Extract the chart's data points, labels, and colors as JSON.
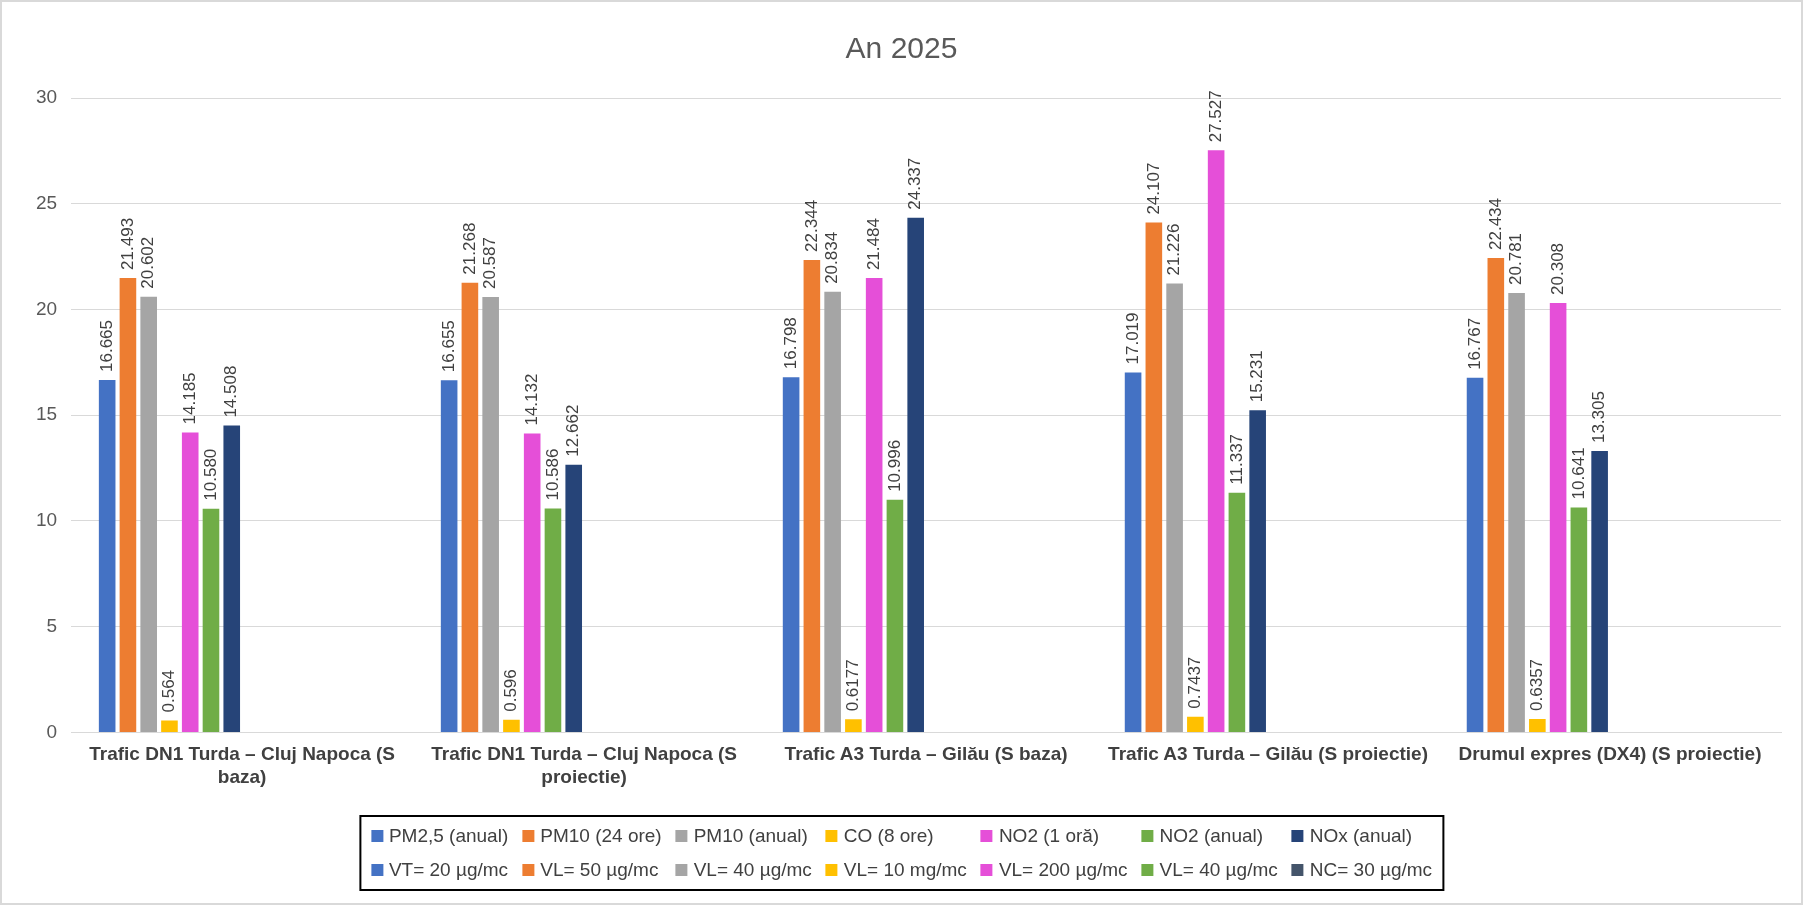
{
  "chart_data": {
    "type": "bar",
    "title": "An 2025",
    "categories": [
      "Trafic DN1 Turda – Cluj Napoca (S baza)",
      "Trafic DN1 Turda – Cluj Napoca (S proiectie)",
      "Trafic A3 Turda – Gilău (S baza)",
      "Trafic A3 Turda – Gilău (S proiectie)",
      "Drumul expres (DX4) (S proiectie)"
    ],
    "series": [
      {
        "name": "PM2,5 (anual)",
        "color": "#4472c4",
        "values": [
          16.665,
          16.655,
          16.798,
          17.019,
          16.767
        ],
        "value_labels": [
          "16.665",
          "16.655",
          "16.798",
          "17.019",
          "16.767"
        ]
      },
      {
        "name": "PM10 (24 ore)",
        "color": "#ed7d31",
        "values": [
          21.493,
          21.268,
          22.344,
          24.107,
          22.434
        ],
        "value_labels": [
          "21.493",
          "21.268",
          "22.344",
          "24.107",
          "22.434"
        ]
      },
      {
        "name": "PM10 (anual)",
        "color": "#a5a5a5",
        "values": [
          20.602,
          20.587,
          20.834,
          21.226,
          20.781
        ],
        "value_labels": [
          "20.602",
          "20.587",
          "20.834",
          "21.226",
          "20.781"
        ]
      },
      {
        "name": "CO (8 ore)",
        "color": "#ffc000",
        "values": [
          0.564,
          0.596,
          0.6177,
          0.7437,
          0.6357
        ],
        "value_labels": [
          "0.564",
          "0.596",
          "0.6177",
          "0.7437",
          "0.6357"
        ]
      },
      {
        "name": "NO2 (1 oră)",
        "color": "#e54fd8",
        "values": [
          14.185,
          14.132,
          21.484,
          27.527,
          20.308
        ],
        "value_labels": [
          "14.185",
          "14.132",
          "21.484",
          "27.527",
          "20.308"
        ]
      },
      {
        "name": "NO2 (anual)",
        "color": "#70ad47",
        "values": [
          10.58,
          10.586,
          10.996,
          11.337,
          10.641
        ],
        "value_labels": [
          "10.580",
          "10.586",
          "10.996",
          "11.337",
          "10.641"
        ]
      },
      {
        "name": "NOx (anual)",
        "color": "#264478",
        "values": [
          14.508,
          12.662,
          24.337,
          15.231,
          13.305
        ],
        "value_labels": [
          "14.508",
          "12.662",
          "24.337",
          "15.231",
          "13.305"
        ]
      },
      {
        "name": "VT= 20 µg/mc",
        "color": "#4472c4",
        "values": [
          null,
          null,
          null,
          null,
          null
        ]
      },
      {
        "name": "VL= 50 µg/mc",
        "color": "#ed7d31",
        "values": [
          null,
          null,
          null,
          null,
          null
        ]
      },
      {
        "name": "VL= 40 µg/mc",
        "color": "#a5a5a5",
        "values": [
          null,
          null,
          null,
          null,
          null
        ]
      },
      {
        "name": "VL= 10 mg/mc",
        "color": "#ffc000",
        "values": [
          null,
          null,
          null,
          null,
          null
        ]
      },
      {
        "name": "VL= 200 µg/mc",
        "color": "#e54fd8",
        "values": [
          null,
          null,
          null,
          null,
          null
        ]
      },
      {
        "name": "VL= 40 µg/mc",
        "color": "#70ad47",
        "values": [
          null,
          null,
          null,
          null,
          null
        ]
      },
      {
        "name": "NC= 30 µg/mc",
        "color": "#44546a",
        "values": [
          null,
          null,
          null,
          null,
          null
        ]
      }
    ],
    "ylim": [
      0,
      30
    ],
    "yticks": [
      0,
      5,
      10,
      15,
      20,
      25,
      30
    ],
    "grid": "y",
    "legend": "bottom"
  }
}
